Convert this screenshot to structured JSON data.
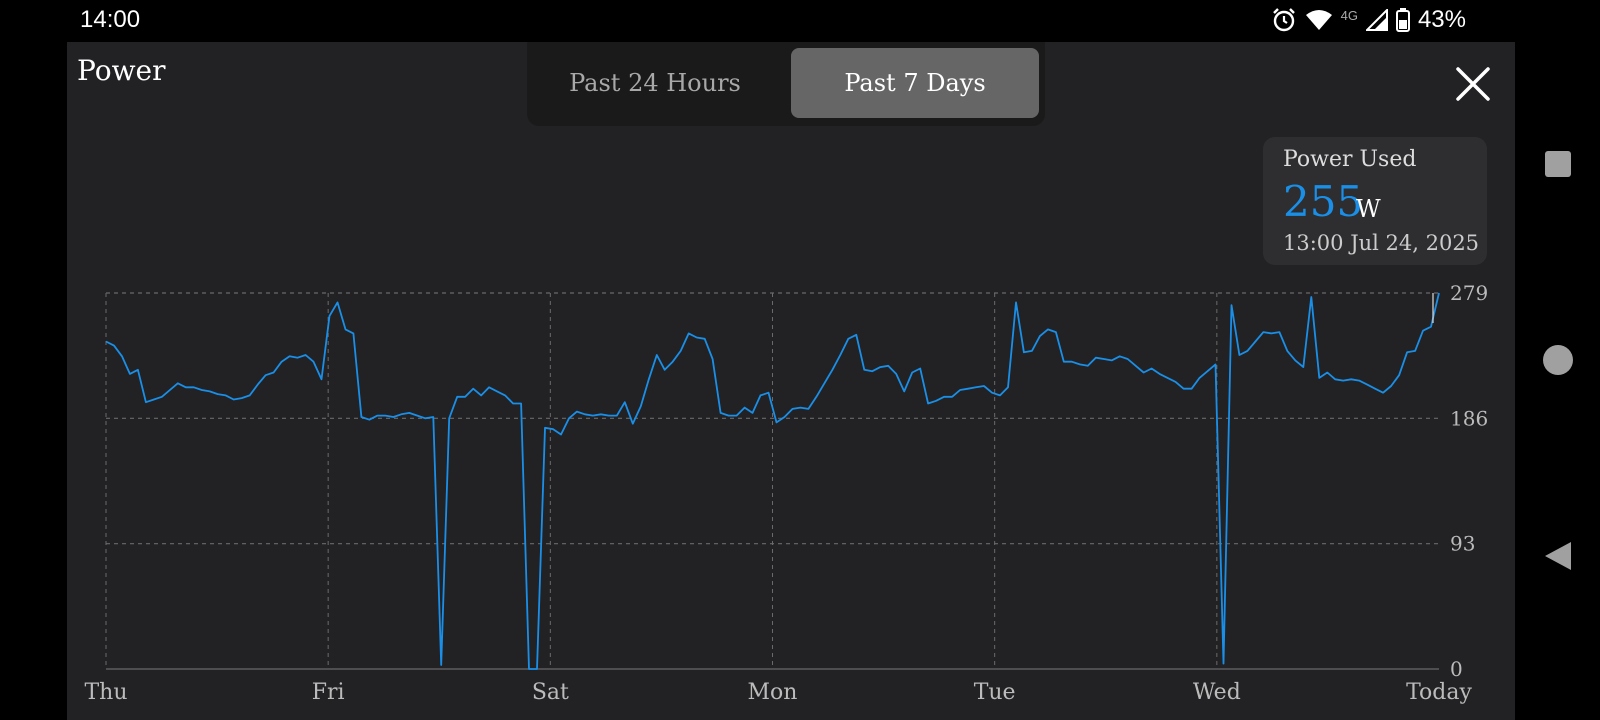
{
  "status": {
    "time": "14:00",
    "network": "4G",
    "battery": "43%",
    "icons": [
      "alarm-icon",
      "wifi-icon",
      "signal-icon",
      "battery-icon"
    ]
  },
  "header": {
    "title": "Power",
    "tabs": [
      {
        "label": "Past 24 Hours",
        "active": false
      },
      {
        "label": "Past 7 Days",
        "active": true
      }
    ],
    "close_icon": "close-icon"
  },
  "tooltip": {
    "label": "Power Used",
    "value": "255",
    "unit": "W",
    "timestamp": "13:00   Jul 24, 2025"
  },
  "colors": {
    "line": "#1a8fe8",
    "panel": "#222224",
    "grid": "#6a6a6a"
  },
  "chart_data": {
    "type": "line",
    "x_labels": [
      "Thu",
      "Fri",
      "Sat",
      "Mon",
      "Tue",
      "Wed",
      "Today"
    ],
    "y_ticks": [
      0,
      93,
      186,
      279
    ],
    "ylim": [
      0,
      279
    ],
    "grid": true,
    "series": [
      {
        "values": [
          243,
          240,
          232,
          219,
          222,
          198,
          200,
          202,
          207,
          212,
          209,
          209,
          207,
          206,
          204,
          203,
          200,
          201,
          203,
          211,
          218,
          220,
          228,
          232,
          231,
          233,
          228,
          215,
          262,
          272,
          252,
          249,
          187,
          185,
          188,
          188,
          187,
          189,
          190,
          188,
          186,
          187,
          3,
          186,
          202,
          202,
          208,
          203,
          209,
          206,
          203,
          197,
          197,
          0,
          0,
          179,
          178,
          174,
          186,
          191,
          189,
          188,
          189,
          188,
          188,
          198,
          182,
          195,
          215,
          233,
          222,
          228,
          236,
          249,
          246,
          245,
          230,
          190,
          188,
          188,
          194,
          190,
          203,
          205,
          183,
          187,
          193,
          194,
          193,
          202,
          212,
          222,
          233,
          245,
          248,
          222,
          221,
          224,
          225,
          219,
          206,
          220,
          223,
          197,
          199,
          202,
          202,
          207,
          208,
          209,
          210,
          205,
          203,
          209,
          272,
          235,
          236,
          247,
          252,
          250,
          228,
          228,
          226,
          225,
          231,
          230,
          229,
          232,
          230,
          225,
          220,
          223,
          219,
          216,
          213,
          208,
          208,
          216,
          221,
          226,
          4,
          270,
          233,
          236,
          243,
          250,
          249,
          250,
          236,
          229,
          224,
          276,
          216,
          220,
          215,
          214,
          215,
          214,
          211,
          208,
          205,
          210,
          218,
          235,
          236,
          251,
          254,
          279
        ]
      }
    ]
  }
}
